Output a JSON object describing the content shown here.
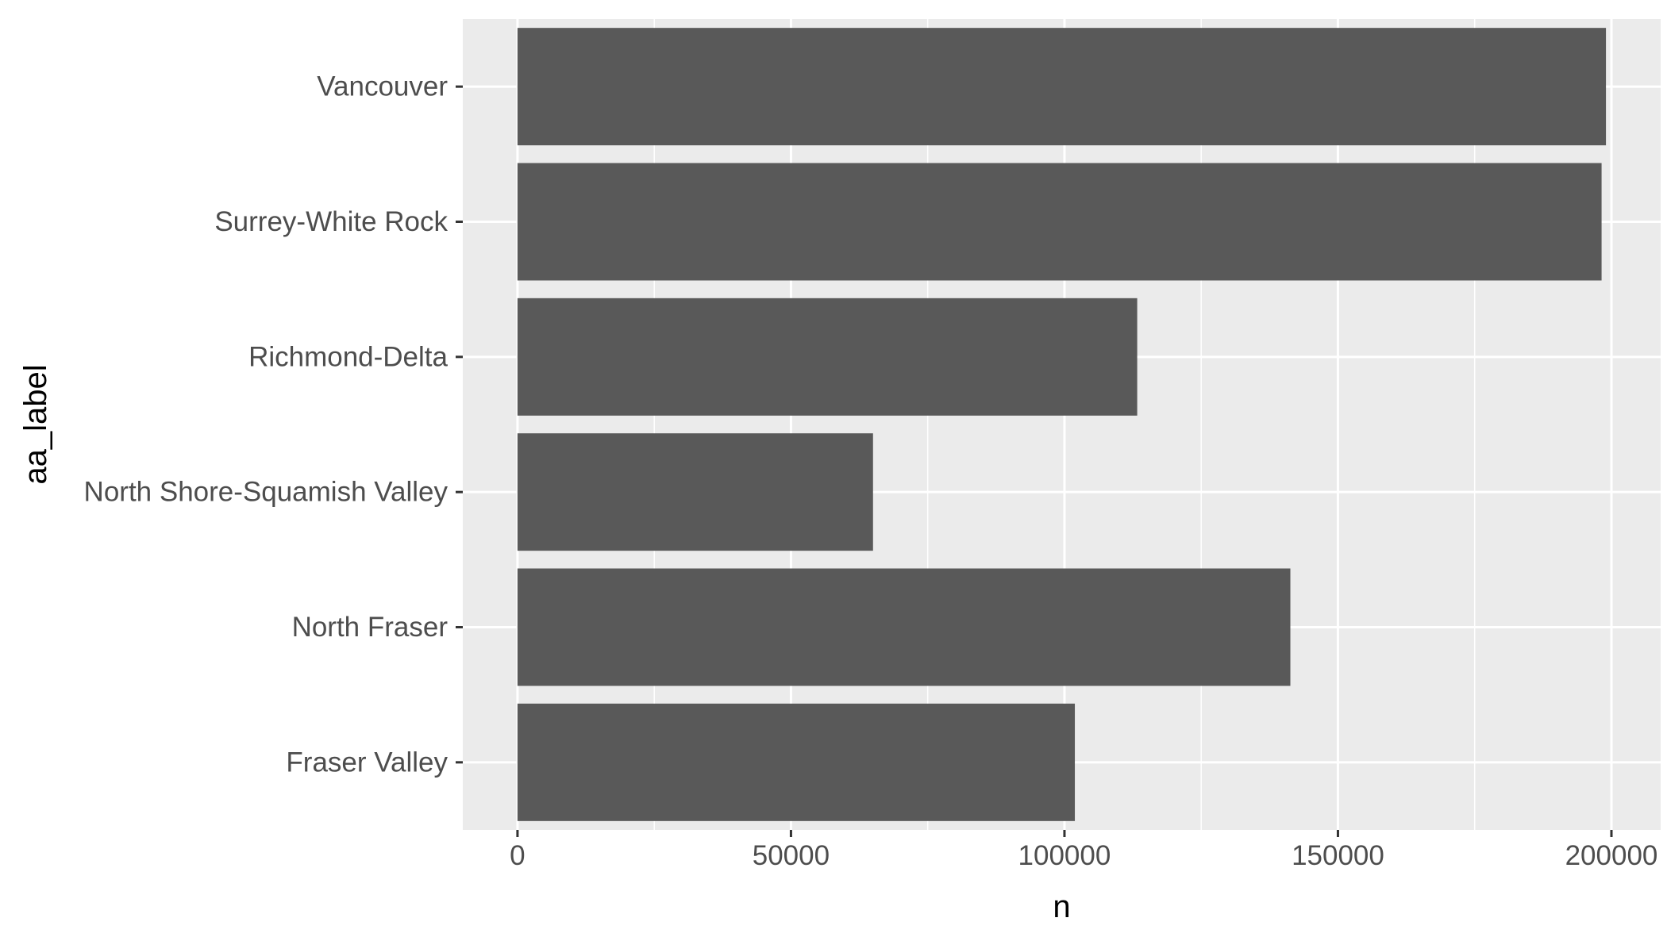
{
  "chart_data": {
    "type": "bar",
    "orientation": "horizontal",
    "title": "",
    "xlabel": "n",
    "ylabel": "aa_label",
    "categories": [
      "Vancouver",
      "Surrey-White Rock",
      "Richmond-Delta",
      "North Shore-Squamish Valley",
      "North Fraser",
      "Fraser Valley"
    ],
    "values": [
      199000,
      198200,
      113300,
      65000,
      141300,
      101900
    ],
    "xlim": [
      -10000,
      209000
    ],
    "x_ticks": [
      0,
      50000,
      100000,
      150000,
      200000
    ],
    "x_tick_labels": [
      "0",
      "50000",
      "100000",
      "150000",
      "200000"
    ],
    "grid": true,
    "legend": "none",
    "colors": {
      "bar": "#595959",
      "panel": "#ebebeb",
      "grid": "#ffffff",
      "tick_text": "#4d4d4d",
      "axis_title": "#000000"
    }
  }
}
